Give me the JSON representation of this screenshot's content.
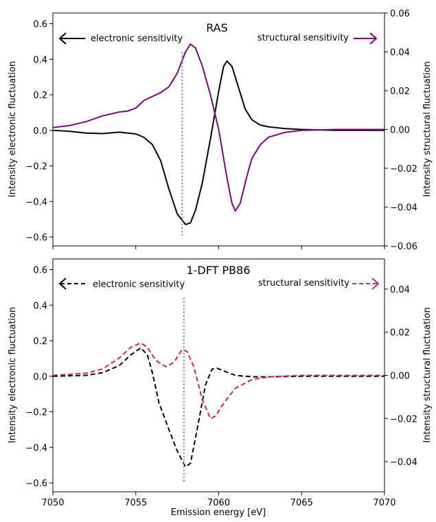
{
  "chart_data": [
    {
      "type": "line",
      "title": "RAS",
      "xlabel": "",
      "ylabel_left": "Intensity electronic fluctuation",
      "ylabel_right": "Intensity structural fluctuation",
      "xlim": [
        7050,
        7070
      ],
      "ylim_left": [
        -0.65,
        0.66
      ],
      "ylim_right": [
        -0.06,
        0.06
      ],
      "xticks": [
        7050,
        7055,
        7060,
        7065,
        7070
      ],
      "xtick_labels_visible": false,
      "yticks_left": [
        -0.6,
        -0.4,
        -0.2,
        0.0,
        0.2,
        0.4,
        0.6
      ],
      "ytick_labels_left": [
        "−0.6",
        "−0.4",
        "−0.2",
        "0.0",
        "0.2",
        "0.4",
        "0.6"
      ],
      "yticks_right": [
        -0.06,
        -0.04,
        -0.02,
        0.0,
        0.02,
        0.04,
        0.06
      ],
      "ytick_labels_right": [
        "−0.06",
        "−0.04",
        "−0.02",
        "0.00",
        "0.02",
        "0.04",
        "0.06"
      ],
      "vline_x": 7057.8,
      "annotations": {
        "left_text": "electronic sensitivity",
        "right_text": "structural sensitivity"
      },
      "series": [
        {
          "axis": "left",
          "color": "#000000",
          "style": "solid",
          "points": [
            [
              7050,
              0.0
            ],
            [
              7051,
              -0.005
            ],
            [
              7052,
              -0.015
            ],
            [
              7053,
              -0.018
            ],
            [
              7054,
              -0.01
            ],
            [
              7055,
              -0.02
            ],
            [
              7055.5,
              -0.04
            ],
            [
              7056,
              -0.08
            ],
            [
              7056.5,
              -0.17
            ],
            [
              7057,
              -0.33
            ],
            [
              7057.5,
              -0.47
            ],
            [
              7058,
              -0.53
            ],
            [
              7058.3,
              -0.52
            ],
            [
              7058.6,
              -0.45
            ],
            [
              7059,
              -0.3
            ],
            [
              7059.5,
              -0.05
            ],
            [
              7060,
              0.22
            ],
            [
              7060.3,
              0.36
            ],
            [
              7060.5,
              0.39
            ],
            [
              7060.8,
              0.36
            ],
            [
              7061.2,
              0.24
            ],
            [
              7061.6,
              0.12
            ],
            [
              7062,
              0.06
            ],
            [
              7062.5,
              0.03
            ],
            [
              7063,
              0.02
            ],
            [
              7064,
              0.01
            ],
            [
              7065,
              0.005
            ],
            [
              7067,
              0.0
            ],
            [
              7070,
              0.0
            ]
          ]
        },
        {
          "axis": "right",
          "color": "#800080",
          "style": "solid",
          "points": [
            [
              7050,
              0.001
            ],
            [
              7051,
              0.002
            ],
            [
              7052,
              0.004
            ],
            [
              7053,
              0.007
            ],
            [
              7054,
              0.009
            ],
            [
              7054.5,
              0.0095
            ],
            [
              7055,
              0.011
            ],
            [
              7055.5,
              0.015
            ],
            [
              7056,
              0.017
            ],
            [
              7056.5,
              0.019
            ],
            [
              7057,
              0.022
            ],
            [
              7057.5,
              0.029
            ],
            [
              7058,
              0.04
            ],
            [
              7058.3,
              0.044
            ],
            [
              7058.6,
              0.042
            ],
            [
              7059,
              0.033
            ],
            [
              7059.5,
              0.018
            ],
            [
              7060,
              0.0
            ],
            [
              7060.5,
              -0.025
            ],
            [
              7060.8,
              -0.038
            ],
            [
              7061,
              -0.042
            ],
            [
              7061.3,
              -0.038
            ],
            [
              7061.7,
              -0.024
            ],
            [
              7062,
              -0.015
            ],
            [
              7062.5,
              -0.008
            ],
            [
              7063,
              -0.004
            ],
            [
              7064,
              -0.0015
            ],
            [
              7065,
              -0.0005
            ],
            [
              7067,
              0.0
            ],
            [
              7070,
              0.0
            ]
          ]
        }
      ]
    },
    {
      "type": "line",
      "title": "1-DFT PB86",
      "xlabel": "Emission energy [eV]",
      "ylabel_left": "Intensity electronic fluctuation",
      "ylabel_right": "Intensity structural fluctuation",
      "xlim": [
        7050,
        7070
      ],
      "ylim_left": [
        -0.65,
        0.66
      ],
      "ylim_right": [
        -0.054,
        0.054
      ],
      "xticks": [
        7050,
        7055,
        7060,
        7065,
        7070
      ],
      "xtick_labels": [
        "7050",
        "7055",
        "7060",
        "7065",
        "7070"
      ],
      "yticks_left": [
        -0.6,
        -0.4,
        -0.2,
        0.0,
        0.2,
        0.4,
        0.6
      ],
      "ytick_labels_left": [
        "−0.6",
        "−0.4",
        "−0.2",
        "0.0",
        "0.2",
        "0.4",
        "0.6"
      ],
      "yticks_right": [
        -0.04,
        -0.02,
        0.0,
        0.02,
        0.04
      ],
      "ytick_labels_right": [
        "−0.04",
        "−0.02",
        "0.00",
        "0.02",
        "0.04"
      ],
      "vline_x": 7057.9,
      "annotations": {
        "left_text": "electronic sensitivity",
        "right_text": "structural sensitivity"
      },
      "series": [
        {
          "axis": "left",
          "color": "#000000",
          "style": "dashed",
          "points": [
            [
              7050,
              0.0
            ],
            [
              7052,
              0.005
            ],
            [
              7053,
              0.02
            ],
            [
              7054,
              0.06
            ],
            [
              7054.7,
              0.12
            ],
            [
              7055.3,
              0.16
            ],
            [
              7055.7,
              0.12
            ],
            [
              7056,
              0.02
            ],
            [
              7056.4,
              -0.15
            ],
            [
              7057,
              -0.3
            ],
            [
              7057.5,
              -0.42
            ],
            [
              7058,
              -0.51
            ],
            [
              7058.3,
              -0.49
            ],
            [
              7058.7,
              -0.3
            ],
            [
              7059.2,
              -0.05
            ],
            [
              7059.6,
              0.04
            ],
            [
              7059.9,
              0.045
            ],
            [
              7060.3,
              0.03
            ],
            [
              7061,
              0.005
            ],
            [
              7062,
              -0.003
            ],
            [
              7063,
              -0.003
            ],
            [
              7065,
              0.0
            ],
            [
              7070,
              0.0
            ]
          ]
        },
        {
          "axis": "right",
          "color": "#cc2277",
          "style": "dashed",
          "points": [
            [
              7050,
              0.0
            ],
            [
              7052,
              0.001
            ],
            [
              7053,
              0.003
            ],
            [
              7054,
              0.008
            ],
            [
              7054.7,
              0.013
            ],
            [
              7055.3,
              0.015
            ],
            [
              7055.7,
              0.013
            ],
            [
              7056.2,
              0.007
            ],
            [
              7056.8,
              0.004
            ],
            [
              7057.3,
              0.006
            ],
            [
              7057.8,
              0.012
            ],
            [
              7058.1,
              0.011
            ],
            [
              7058.5,
              0.004
            ],
            [
              7059,
              -0.011
            ],
            [
              7059.5,
              -0.02
            ],
            [
              7059.8,
              -0.019
            ],
            [
              7060.3,
              -0.013
            ],
            [
              7061,
              -0.006
            ],
            [
              7062,
              -0.002
            ],
            [
              7063,
              -0.0007
            ],
            [
              7065,
              0.0
            ],
            [
              7070,
              0.0
            ]
          ]
        }
      ]
    }
  ],
  "colors": {
    "purple": "#800080",
    "magenta": "#cc2277",
    "black": "#000000",
    "vline": "#808080"
  }
}
